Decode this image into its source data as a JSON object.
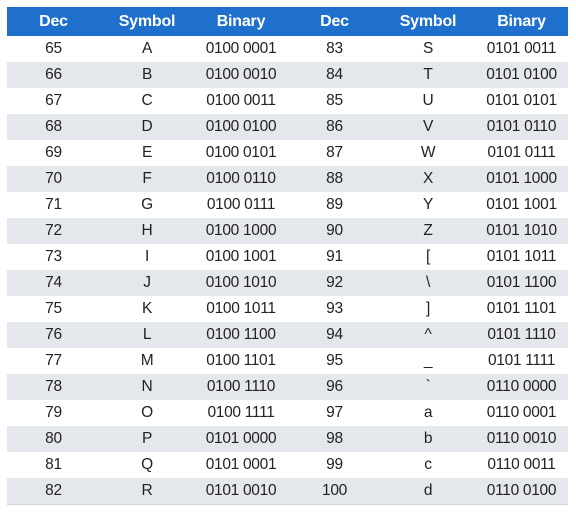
{
  "table": {
    "headers": [
      "Dec",
      "Symbol",
      "Binary",
      "Dec",
      "Symbol",
      "Binary"
    ],
    "rows": [
      [
        "65",
        "A",
        "0100 0001",
        "83",
        "S",
        "0101 0011"
      ],
      [
        "66",
        "B",
        "0100 0010",
        "84",
        "T",
        "0101 0100"
      ],
      [
        "67",
        "C",
        "0100 0011",
        "85",
        "U",
        "0101 0101"
      ],
      [
        "68",
        "D",
        "0100 0100",
        "86",
        "V",
        "0101 0110"
      ],
      [
        "69",
        "E",
        "0100 0101",
        "87",
        "W",
        "0101 0111"
      ],
      [
        "70",
        "F",
        "0100 0110",
        "88",
        "X",
        "0101 1000"
      ],
      [
        "71",
        "G",
        "0100 0111",
        "89",
        "Y",
        "0101 1001"
      ],
      [
        "72",
        "H",
        "0100 1000",
        "90",
        "Z",
        "0101 1010"
      ],
      [
        "73",
        "I",
        "0100 1001",
        "91",
        "[",
        "0101 1011"
      ],
      [
        "74",
        "J",
        "0100 1010",
        "92",
        "\\",
        "0101 1100"
      ],
      [
        "75",
        "K",
        "0100 1011",
        "93",
        "]",
        "0101 1101"
      ],
      [
        "76",
        "L",
        "0100 1100",
        "94",
        "^",
        "0101 1110"
      ],
      [
        "77",
        "M",
        "0100 1101",
        "95",
        "_",
        "0101 1111"
      ],
      [
        "78",
        "N",
        "0100 1110",
        "96",
        "`",
        "0110 0000"
      ],
      [
        "79",
        "O",
        "0100 1111",
        "97",
        "a",
        "0110 0001"
      ],
      [
        "80",
        "P",
        "0101 0000",
        "98",
        "b",
        "0110 0010"
      ],
      [
        "81",
        "Q",
        "0101 0001",
        "99",
        "c",
        "0110 0011"
      ],
      [
        "82",
        "R",
        "0101 0010",
        "100",
        "d",
        "0110 0100"
      ]
    ]
  },
  "colors": {
    "header_bg": "#1f6fcc",
    "header_text": "#ffffff",
    "stripe_bg": "#e4e7ec",
    "row_bg": "#ffffff",
    "cell_text": "#222222"
  }
}
